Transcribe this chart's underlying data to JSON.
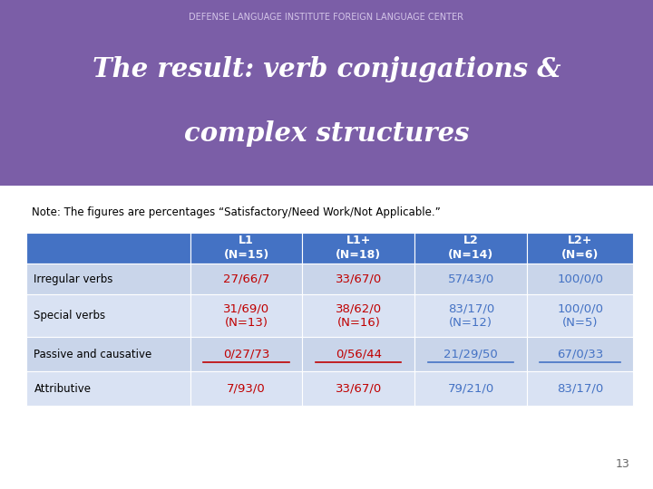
{
  "title_line1": "The result: verb conjugations &",
  "title_line2": "complex structures",
  "note": "Note: The figures are percentages “Satisfactory/Need Work/Not Applicable.”",
  "header_bg": "#4472C4",
  "header_text_color": "#FFFFFF",
  "row_bg_light": "#C9D5EA",
  "row_bg_alt": "#D9E2F3",
  "col_headers": [
    "L1\n(N=15)",
    "L1+\n(N=18)",
    "L2\n(N=14)",
    "L2+\n(N=6)"
  ],
  "row_labels": [
    "Irregular verbs",
    "Special verbs",
    "Passive and causative",
    "Attributive"
  ],
  "data": [
    [
      "27/66/7",
      "33/67/0",
      "57/43/0",
      "100/0/0"
    ],
    [
      "31/69/0\n(N=13)",
      "38/62/0\n(N=16)",
      "83/17/0\n(N=12)",
      "100/0/0\n(N=5)"
    ],
    [
      "0/27/73",
      "0/56/44",
      "21/29/50",
      "67/0/33"
    ],
    [
      "7/93/0",
      "33/67/0",
      "79/21/0",
      "83/17/0"
    ]
  ],
  "cell_colors_l1_l1plus": "#C00000",
  "cell_colors_l2_l2plus": "#4472C4",
  "slide_bg": "#FFFFFF",
  "header_purple": "#7B5EA7",
  "header_purple_dark": "#4A2A6A",
  "dli_text": "DEFENSE LANGUAGE INSTITUTE FOREIGN LANGUAGE CENTER",
  "page_number": "13"
}
